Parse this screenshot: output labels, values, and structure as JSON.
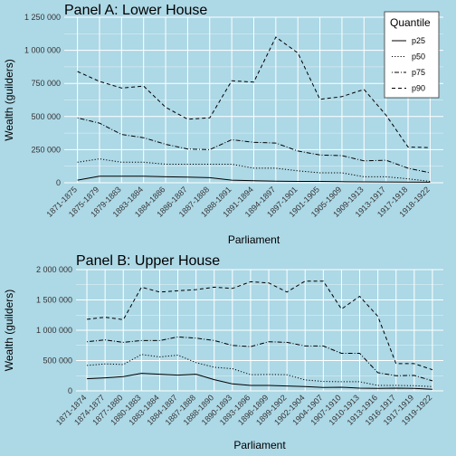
{
  "chart_data": [
    {
      "type": "line",
      "title": "Panel A: Lower House",
      "xlabel": "Parliament",
      "ylabel": "Wealth (guilders)",
      "ylim": [
        0,
        1250000
      ],
      "ytick_values": [
        0,
        250000,
        500000,
        750000,
        1000000,
        1250000
      ],
      "ytick_labels": [
        "0",
        "250 000",
        "500 000",
        "750 000",
        "1 000 000",
        "1 250 000"
      ],
      "categories": [
        "1871-1875",
        "1875-1879",
        "1879-1883",
        "1883-1884",
        "1884-1886",
        "1886-1887",
        "1887-1888",
        "1888-1891",
        "1891-1894",
        "1894-1897",
        "1897-1901",
        "1901-1905",
        "1905-1909",
        "1909-1913",
        "1913-1917",
        "1917-1918",
        "1918-1922"
      ],
      "legend": {
        "title": "Quantile",
        "position": "top-right"
      },
      "grid": true,
      "series": [
        {
          "name": "p25",
          "dash": "solid",
          "values": [
            20000,
            50000,
            50000,
            50000,
            45000,
            43000,
            38000,
            20000,
            15000,
            12000,
            10000,
            10000,
            8000,
            7000,
            6000,
            5000,
            4000
          ]
        },
        {
          "name": "p50",
          "dash": "dotted",
          "values": [
            155000,
            180000,
            155000,
            155000,
            140000,
            140000,
            140000,
            140000,
            110000,
            110000,
            90000,
            75000,
            75000,
            45000,
            45000,
            30000,
            10000
          ]
        },
        {
          "name": "p75",
          "dash": "dashdot",
          "values": [
            490000,
            450000,
            365000,
            340000,
            290000,
            255000,
            250000,
            325000,
            305000,
            300000,
            240000,
            210000,
            205000,
            165000,
            170000,
            110000,
            75000
          ]
        },
        {
          "name": "p90",
          "dash": "dashed",
          "values": [
            840000,
            765000,
            715000,
            730000,
            570000,
            480000,
            490000,
            770000,
            760000,
            1100000,
            980000,
            630000,
            650000,
            705000,
            510000,
            270000,
            265000
          ]
        }
      ]
    },
    {
      "type": "line",
      "title": "Panel B: Upper House",
      "xlabel": "Parliament",
      "ylabel": "Wealth (guilders)",
      "ylim": [
        0,
        2000000
      ],
      "ytick_values": [
        0,
        500000,
        1000000,
        1500000,
        2000000
      ],
      "ytick_labels": [
        "0",
        "500 000",
        "1 000 000",
        "1 500 000",
        "2 000 000"
      ],
      "categories": [
        "1871-1874",
        "1874-1877",
        "1877-1880",
        "1880-1883",
        "1883-1884",
        "1884-1887",
        "1887-1888",
        "1888-1890",
        "1890-1893",
        "1893-1896",
        "1896-1899",
        "1899-1902",
        "1902-1904",
        "1904-1907",
        "1907-1910",
        "1910-1913",
        "1913-1916",
        "1916-1917",
        "1917-1919",
        "1919-1922"
      ],
      "legend": null,
      "grid": true,
      "series": [
        {
          "name": "p25",
          "dash": "solid",
          "values": [
            200000,
            215000,
            235000,
            290000,
            275000,
            260000,
            275000,
            185000,
            115000,
            90000,
            90000,
            80000,
            70000,
            55000,
            60000,
            45000,
            40000,
            45000,
            40000,
            25000
          ]
        },
        {
          "name": "p50",
          "dash": "dotted",
          "values": [
            420000,
            445000,
            435000,
            600000,
            560000,
            590000,
            465000,
            390000,
            365000,
            265000,
            270000,
            265000,
            180000,
            155000,
            150000,
            150000,
            90000,
            90000,
            85000,
            70000
          ]
        },
        {
          "name": "p75",
          "dash": "dashdot",
          "values": [
            810000,
            840000,
            800000,
            830000,
            830000,
            890000,
            870000,
            830000,
            750000,
            730000,
            810000,
            800000,
            740000,
            740000,
            620000,
            620000,
            300000,
            250000,
            255000,
            165000
          ]
        },
        {
          "name": "p90",
          "dash": "dashed",
          "values": [
            1180000,
            1215000,
            1175000,
            1710000,
            1630000,
            1650000,
            1670000,
            1710000,
            1690000,
            1800000,
            1780000,
            1630000,
            1810000,
            1810000,
            1350000,
            1560000,
            1230000,
            450000,
            450000,
            350000
          ]
        }
      ]
    }
  ]
}
